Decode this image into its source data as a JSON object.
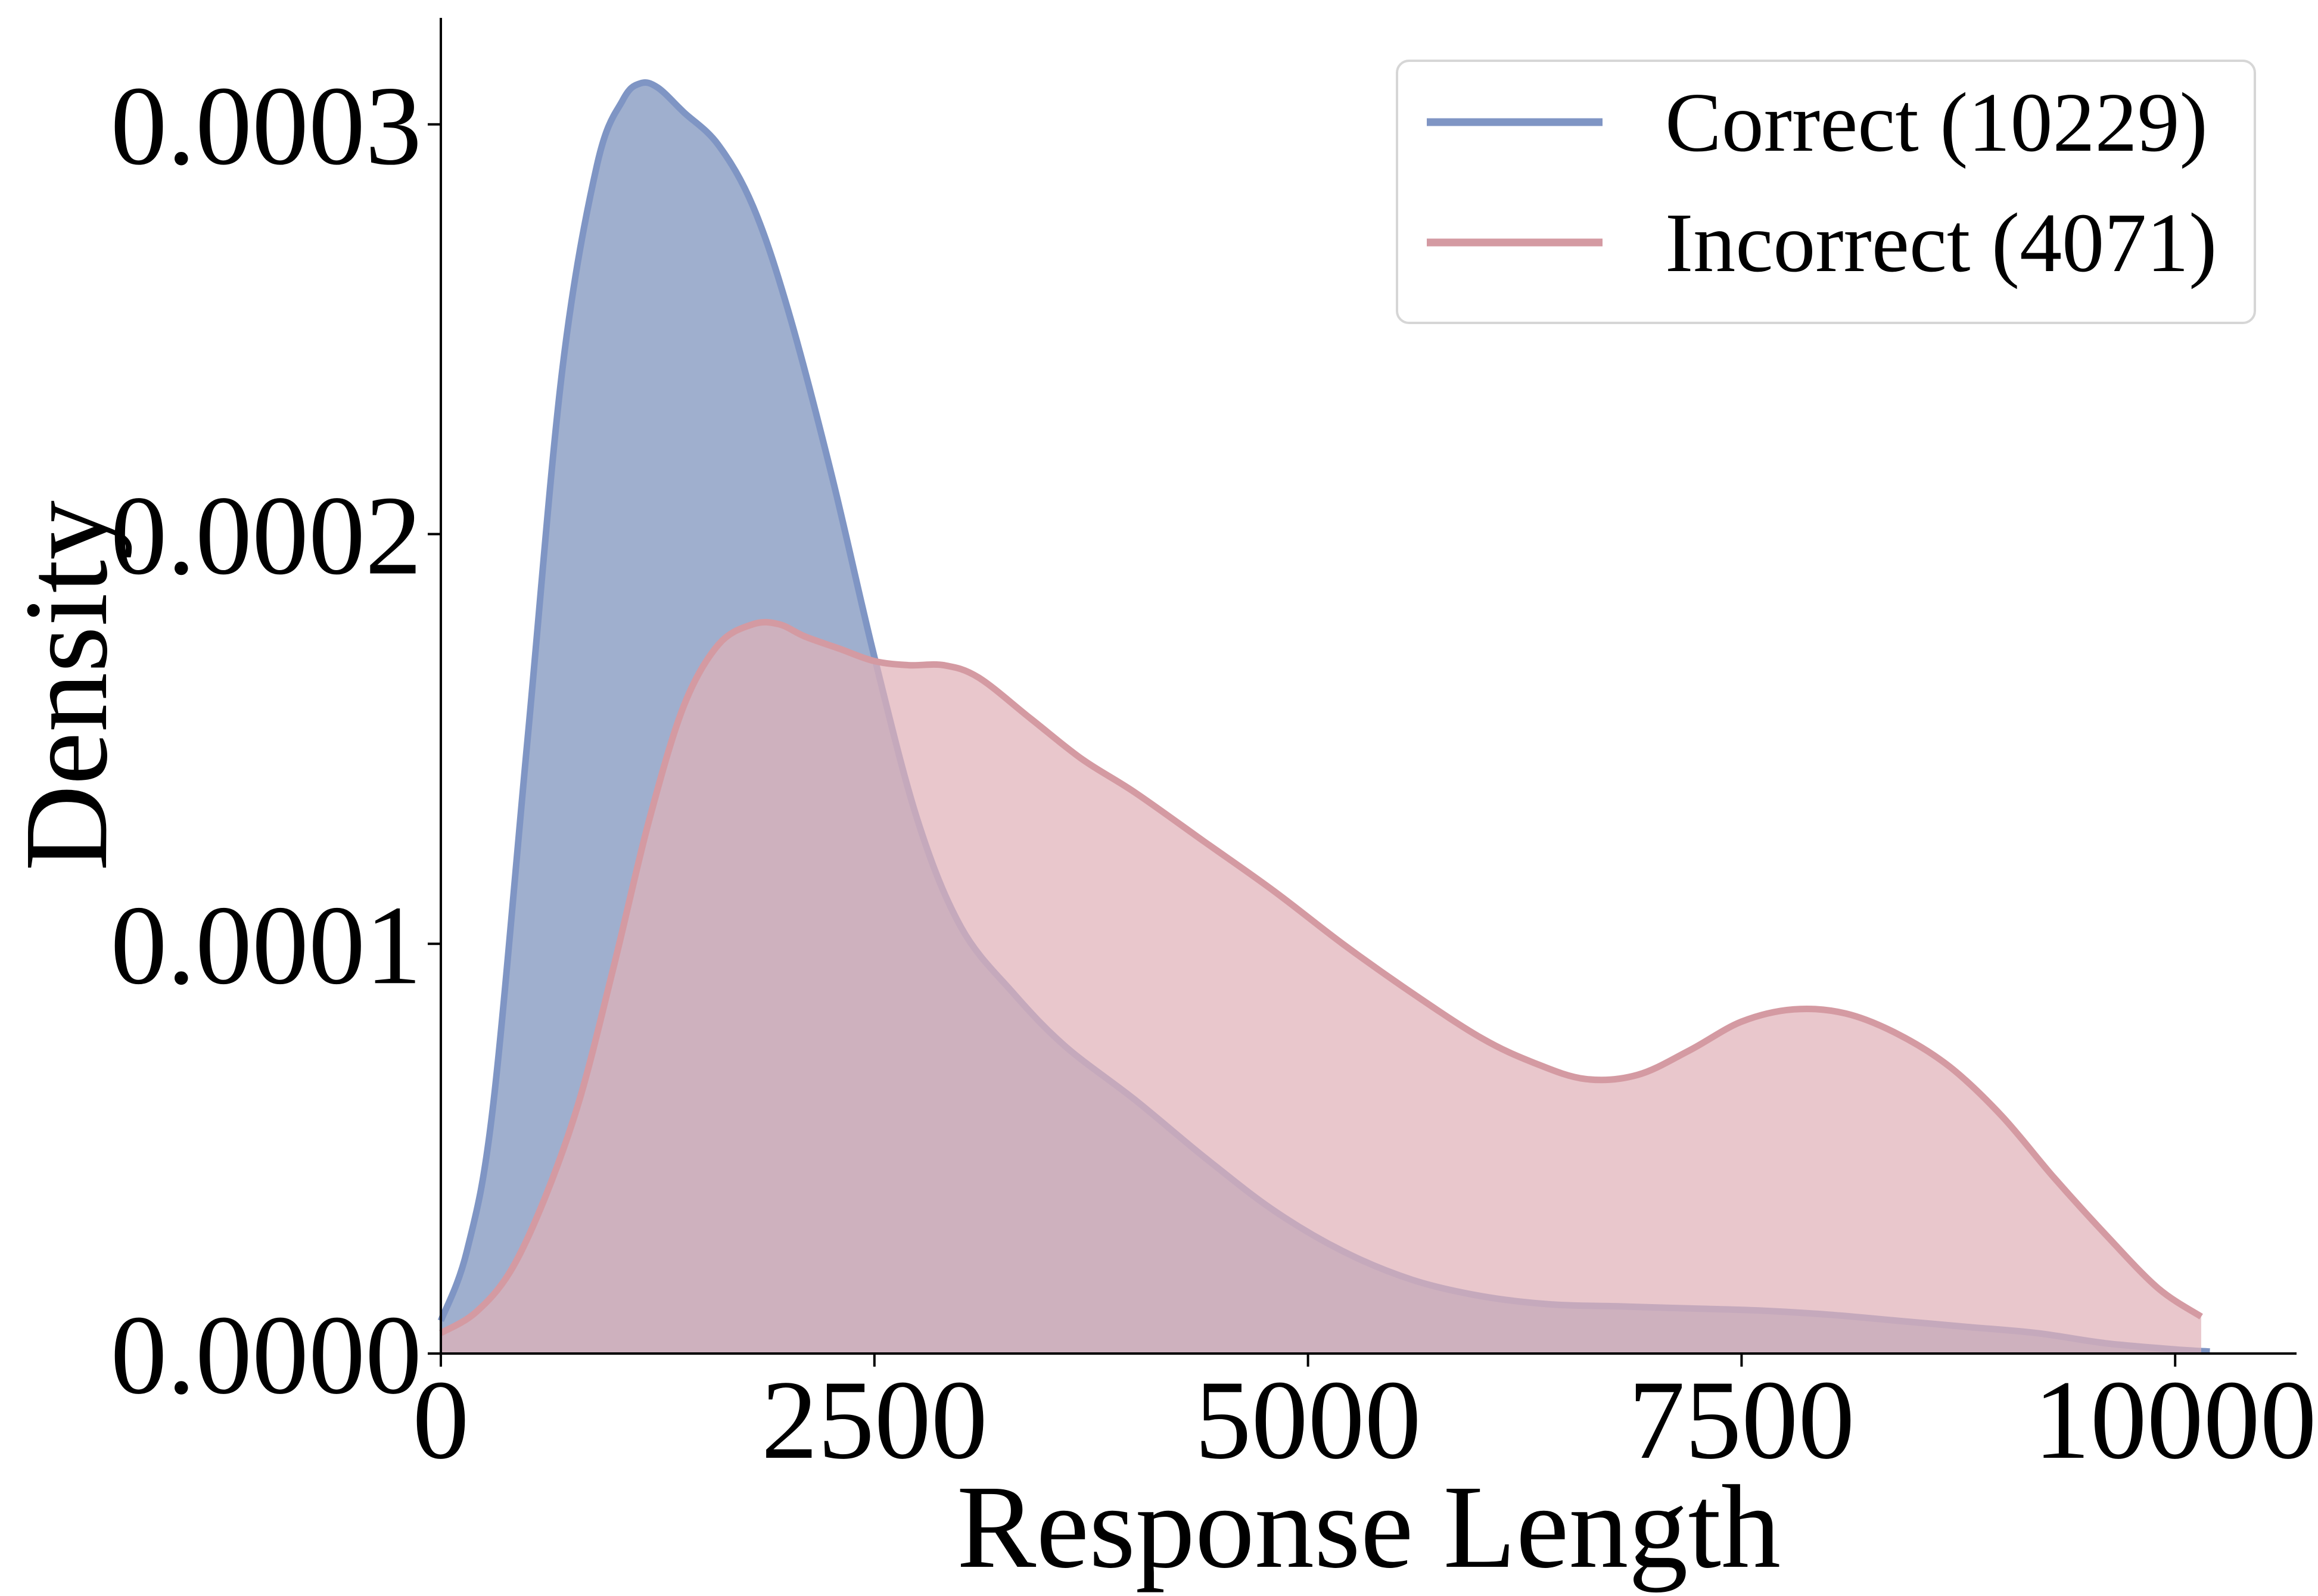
{
  "chart_data": {
    "type": "area",
    "xlabel": "Response Length",
    "ylabel": "Density",
    "xlim": [
      0,
      10700
    ],
    "ylim": [
      0,
      0.000326
    ],
    "xticks": [
      0,
      2500,
      5000,
      7500,
      10000
    ],
    "xtick_labels": [
      "0",
      "2500",
      "5000",
      "7500",
      "10000"
    ],
    "yticks": [
      0,
      0.0001,
      0.0002,
      0.0003
    ],
    "ytick_labels": [
      "0.0000",
      "0.0001",
      "0.0002",
      "0.0003"
    ],
    "grid": false,
    "legend_position": "top-right",
    "series": [
      {
        "name": "Correct (10229)",
        "color": "#7f95c4",
        "fill": "#9fafce",
        "x": [
          0,
          150,
          300,
          500,
          700,
          900,
          1050,
          1150,
          1250,
          1400,
          1600,
          1800,
          2000,
          2250,
          2500,
          2750,
          3000,
          3300,
          3600,
          4000,
          4400,
          4800,
          5200,
          5600,
          6000,
          6400,
          6800,
          7200,
          7600,
          8000,
          8400,
          8800,
          9200,
          9600,
          10000,
          10200
        ],
        "y": [
          8e-06,
          2.5e-05,
          6e-05,
          0.00015,
          0.00024,
          0.00029,
          0.000306,
          0.00031,
          0.000309,
          0.000303,
          0.000295,
          0.00028,
          0.000255,
          0.000215,
          0.00017,
          0.00013,
          0.000104,
          8.8e-05,
          7.5e-05,
          6.2e-05,
          4.8e-05,
          3.5e-05,
          2.5e-05,
          1.8e-05,
          1.4e-05,
          1.2e-05,
          1.15e-05,
          1.1e-05,
          1.05e-05,
          9.5e-06,
          8e-06,
          6.5e-06,
          5e-06,
          2.5e-06,
          1e-06,
          5e-07
        ]
      },
      {
        "name": "Incorrect (4071)",
        "color": "#d49aa2",
        "fill": "#e0b2b8",
        "x": [
          0,
          200,
          400,
          600,
          800,
          1000,
          1200,
          1400,
          1600,
          1800,
          1950,
          2100,
          2300,
          2500,
          2700,
          2900,
          3100,
          3400,
          3700,
          4000,
          4400,
          4800,
          5200,
          5600,
          6000,
          6300,
          6600,
          6900,
          7200,
          7500,
          7800,
          8100,
          8400,
          8700,
          9000,
          9300,
          9600,
          9900,
          10150
        ],
        "y": [
          5e-06,
          1e-05,
          2e-05,
          3.8e-05,
          6.2e-05,
          9.5e-05,
          0.00013,
          0.000158,
          0.000173,
          0.000178,
          0.000178,
          0.000175,
          0.000172,
          0.000169,
          0.000168,
          0.000168,
          0.000165,
          0.000155,
          0.000145,
          0.000137,
          0.000125,
          0.000113,
          0.0001,
          8.8e-05,
          7.7e-05,
          7.1e-05,
          6.7e-05,
          6.8e-05,
          7.4e-05,
          8.1e-05,
          8.4e-05,
          8.3e-05,
          7.8e-05,
          7e-05,
          5.8e-05,
          4.3e-05,
          2.9e-05,
          1.6e-05,
          9e-06
        ]
      }
    ]
  }
}
